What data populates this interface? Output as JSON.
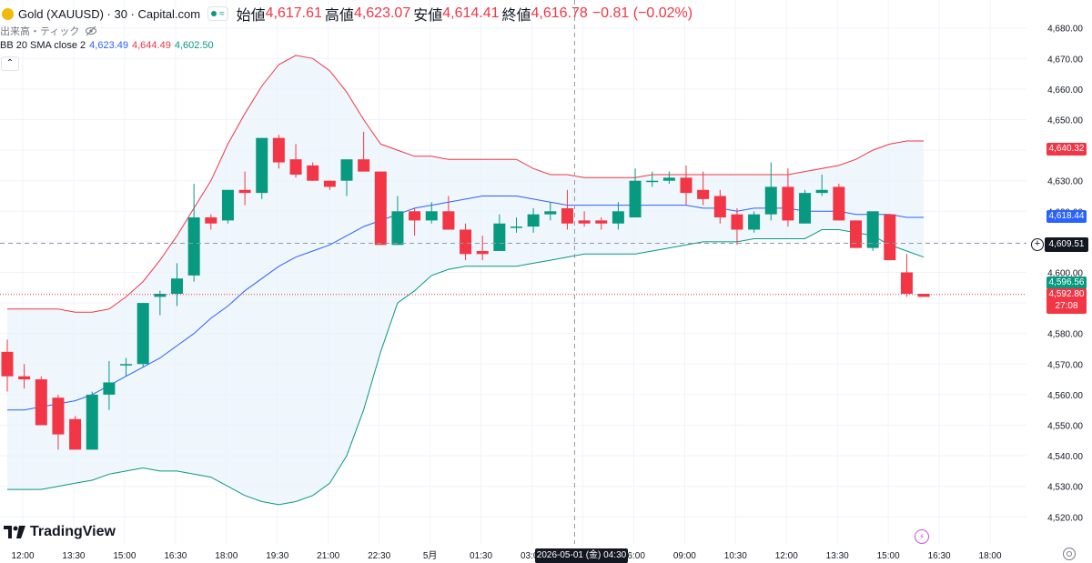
{
  "header": {
    "symbol": "Gold (XAUUSD) · 30 · Capital.com",
    "approx_symbol": "≈",
    "open_label": "始値",
    "open": "4,617.61",
    "high_label": "高値",
    "high": "4,623.07",
    "low_label": "安値",
    "low": "4,614.41",
    "close_label": "終値",
    "close": "4,616.78",
    "change": "−0.81 (−0.02%)",
    "volume_label": "出来高・ティック",
    "indicator_label": "BB 20 SMA close 2",
    "bb_basis": "4,623.49",
    "bb_upper": "4,644.49",
    "bb_lower": "4,602.50",
    "logo_text": "TradingView",
    "collapse_symbol": "⌃"
  },
  "tags": {
    "upper": "4,640.32",
    "basis": "4,618.44",
    "crosshair": "4,609.51",
    "lower": "4,596.56",
    "last": "4,592.80",
    "countdown": "27:08",
    "crosshair_time": "2026-05-01 (金)  04:30"
  },
  "colors": {
    "up": "#089981",
    "down": "#f23645",
    "upper_band": "#f23645",
    "basis": "#2962ff",
    "lower_band": "#089981",
    "band_fill": "#eaf3fb",
    "grid": "#f0f3fa",
    "text": "#131722"
  },
  "chart_data": {
    "type": "candlestick",
    "title": "Gold (XAUUSD) · 30 · Capital.com",
    "y_ticks": [
      4520,
      4530,
      4540,
      4550,
      4560,
      4570,
      4580,
      4590,
      4600,
      4610,
      4620,
      4630,
      4640,
      4650,
      4660,
      4670,
      4680
    ],
    "y_tick_labels": [
      "4,520.00",
      "4,530.00",
      "4,540.00",
      "4,550.00",
      "4,560.00",
      "4,570.00",
      "4,580.00",
      "4,590.00",
      "4,600.00",
      "4,610.00",
      "4,620.00",
      "4,630.00",
      "4,640.00",
      "4,650.00",
      "4,660.00",
      "4,670.00",
      "4,680.00"
    ],
    "ylim": [
      4515,
      4685
    ],
    "x_ticks": [
      0,
      3,
      6,
      9,
      12,
      15,
      18,
      21,
      24,
      27,
      30,
      33,
      36,
      39,
      42,
      45,
      48,
      51,
      54,
      57
    ],
    "x_tick_labels": [
      "12:00",
      "13:30",
      "15:00",
      "16:30",
      "18:00",
      "19:30",
      "21:00",
      "22:30",
      "5月",
      "01:30",
      "03:00",
      "04:30",
      "06:00",
      "09:00",
      "10:30",
      "12:00",
      "13:30",
      "15:00",
      "16:30",
      "18:00"
    ],
    "candles": [
      {
        "o": 4574,
        "h": 4578,
        "l": 4561,
        "c": 4566
      },
      {
        "o": 4566,
        "h": 4570,
        "l": 4562,
        "c": 4565
      },
      {
        "o": 4565,
        "h": 4566,
        "l": 4550,
        "c": 4550
      },
      {
        "o": 4559,
        "h": 4560,
        "l": 4542,
        "c": 4547
      },
      {
        "o": 4552,
        "h": 4553,
        "l": 4542,
        "c": 4542
      },
      {
        "o": 4542,
        "h": 4561,
        "l": 4542,
        "c": 4560
      },
      {
        "o": 4560,
        "h": 4571,
        "l": 4555,
        "c": 4564
      },
      {
        "o": 4570,
        "h": 4572,
        "l": 4566,
        "c": 4570
      },
      {
        "o": 4570,
        "h": 4590,
        "l": 4569,
        "c": 4590
      },
      {
        "o": 4592,
        "h": 4594,
        "l": 4586,
        "c": 4593
      },
      {
        "o": 4593,
        "h": 4603,
        "l": 4589,
        "c": 4598
      },
      {
        "o": 4599,
        "h": 4629,
        "l": 4597,
        "c": 4618
      },
      {
        "o": 4618,
        "h": 4619,
        "l": 4614,
        "c": 4616
      },
      {
        "o": 4617,
        "h": 4627,
        "l": 4616,
        "c": 4627
      },
      {
        "o": 4627,
        "h": 4633,
        "l": 4622,
        "c": 4626
      },
      {
        "o": 4626,
        "h": 4644,
        "l": 4624,
        "c": 4644
      },
      {
        "o": 4644,
        "h": 4645,
        "l": 4634,
        "c": 4636
      },
      {
        "o": 4637,
        "h": 4642,
        "l": 4631,
        "c": 4632
      },
      {
        "o": 4635,
        "h": 4636,
        "l": 4630,
        "c": 4630
      },
      {
        "o": 4630,
        "h": 4630,
        "l": 4627,
        "c": 4628
      },
      {
        "o": 4630,
        "h": 4637,
        "l": 4625,
        "c": 4637
      },
      {
        "o": 4637,
        "h": 4646,
        "l": 4633,
        "c": 4633
      },
      {
        "o": 4633,
        "h": 4633,
        "l": 4609,
        "c": 4609
      },
      {
        "o": 4609,
        "h": 4625,
        "l": 4609,
        "c": 4620
      },
      {
        "o": 4620,
        "h": 4621,
        "l": 4612,
        "c": 4617
      },
      {
        "o": 4617,
        "h": 4623,
        "l": 4616,
        "c": 4620
      },
      {
        "o": 4620,
        "h": 4625,
        "l": 4614,
        "c": 4614
      },
      {
        "o": 4614,
        "h": 4616,
        "l": 4604,
        "c": 4606
      },
      {
        "o": 4607,
        "h": 4612,
        "l": 4604,
        "c": 4606
      },
      {
        "o": 4607,
        "h": 4619,
        "l": 4607,
        "c": 4616
      },
      {
        "o": 4615,
        "h": 4618,
        "l": 4613,
        "c": 4615
      },
      {
        "o": 4615,
        "h": 4621,
        "l": 4613,
        "c": 4619
      },
      {
        "o": 4619,
        "h": 4623,
        "l": 4617,
        "c": 4620
      },
      {
        "o": 4621,
        "h": 4627,
        "l": 4614,
        "c": 4616
      },
      {
        "o": 4617,
        "h": 4620,
        "l": 4615,
        "c": 4616
      },
      {
        "o": 4617,
        "h": 4618,
        "l": 4614,
        "c": 4616
      },
      {
        "o": 4616,
        "h": 4623,
        "l": 4614,
        "c": 4620
      },
      {
        "o": 4618,
        "h": 4634,
        "l": 4618,
        "c": 4630
      },
      {
        "o": 4630,
        "h": 4633,
        "l": 4628,
        "c": 4630
      },
      {
        "o": 4630,
        "h": 4633,
        "l": 4629,
        "c": 4631
      },
      {
        "o": 4631,
        "h": 4635,
        "l": 4622,
        "c": 4626
      },
      {
        "o": 4627,
        "h": 4633,
        "l": 4622,
        "c": 4624
      },
      {
        "o": 4625,
        "h": 4627,
        "l": 4616,
        "c": 4618
      },
      {
        "o": 4619,
        "h": 4621,
        "l": 4609,
        "c": 4614
      },
      {
        "o": 4614,
        "h": 4620,
        "l": 4613,
        "c": 4619
      },
      {
        "o": 4619,
        "h": 4636,
        "l": 4617,
        "c": 4628
      },
      {
        "o": 4628,
        "h": 4634,
        "l": 4615,
        "c": 4617
      },
      {
        "o": 4616,
        "h": 4627,
        "l": 4616,
        "c": 4626
      },
      {
        "o": 4626,
        "h": 4632,
        "l": 4625,
        "c": 4627
      },
      {
        "o": 4628,
        "h": 4629,
        "l": 4617,
        "c": 4617
      },
      {
        "o": 4617,
        "h": 4617,
        "l": 4608,
        "c": 4608
      },
      {
        "o": 4608,
        "h": 4619,
        "l": 4607,
        "c": 4620
      },
      {
        "o": 4619,
        "h": 4619,
        "l": 4605,
        "c": 4604
      },
      {
        "o": 4600,
        "h": 4606,
        "l": 4592,
        "c": 4593
      },
      {
        "o": 4593,
        "h": 4593,
        "l": 4592,
        "c": 4592
      }
    ],
    "bb_upper": [
      4588,
      4588,
      4588,
      4588,
      4587,
      4587,
      4588,
      4592,
      4597,
      4604,
      4612,
      4621,
      4630,
      4642,
      4652,
      4661,
      4668,
      4671,
      4670,
      4666,
      4659,
      4650,
      4642,
      4640,
      4638,
      4638,
      4637,
      4637,
      4637,
      4637,
      4637,
      4634,
      4632,
      4632,
      4631,
      4631,
      4631,
      4631,
      4632,
      4632,
      4632,
      4632,
      4632,
      4632,
      4632,
      4632,
      4632,
      4633,
      4634,
      4635,
      4637,
      4640,
      4642,
      4643,
      4643
    ],
    "bb_basis": [
      4555,
      4555,
      4556,
      4557,
      4558,
      4560,
      4563,
      4566,
      4569,
      4572,
      4576,
      4580,
      4585,
      4589,
      4594,
      4598,
      4602,
      4605,
      4607,
      4609,
      4612,
      4615,
      4617,
      4619,
      4621,
      4622,
      4623,
      4624,
      4625,
      4625,
      4625,
      4624,
      4623,
      4622,
      4622,
      4622,
      4622,
      4622,
      4622,
      4622,
      4622,
      4621,
      4621,
      4620,
      4621,
      4621,
      4621,
      4620,
      4620,
      4620,
      4619,
      4619,
      4619,
      4618,
      4618
    ],
    "bb_lower": [
      4529,
      4529,
      4529,
      4530,
      4531,
      4532,
      4534,
      4535,
      4536,
      4535,
      4535,
      4534,
      4533,
      4530,
      4527,
      4525,
      4524,
      4525,
      4527,
      4531,
      4540,
      4555,
      4574,
      4590,
      4594,
      4599,
      4601,
      4602,
      4602,
      4602,
      4602,
      4603,
      4604,
      4605,
      4606,
      4606,
      4606,
      4606,
      4607,
      4608,
      4609,
      4610,
      4610,
      4610,
      4611,
      4611,
      4611,
      4611,
      4614,
      4614,
      4613,
      4612,
      4609,
      4607,
      4605
    ],
    "last_price": 4592.8,
    "crosshair_price": 4609.51,
    "crosshair_index": 33
  }
}
